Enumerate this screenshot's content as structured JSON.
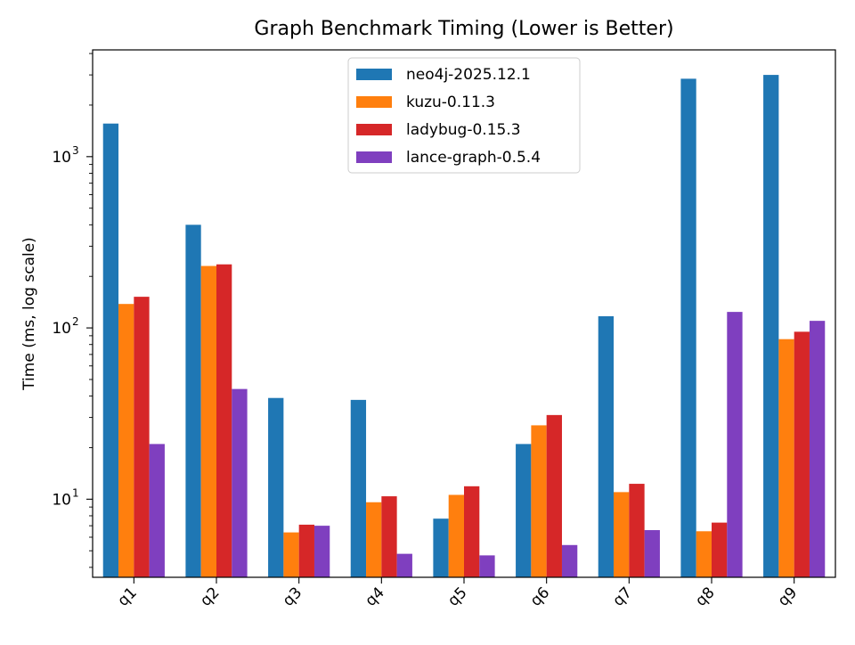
{
  "chart_data": {
    "type": "bar",
    "title": "Graph Benchmark Timing (Lower is Better)",
    "xlabel": "",
    "ylabel": "Time (ms, log scale)",
    "y_scale": "log",
    "ylim": [
      3.5,
      4200
    ],
    "y_ticks": [
      {
        "value": 10,
        "base": "10",
        "exp": "1"
      },
      {
        "value": 100,
        "base": "10",
        "exp": "2"
      },
      {
        "value": 1000,
        "base": "10",
        "exp": "3"
      }
    ],
    "categories": [
      "q1",
      "q2",
      "q3",
      "q4",
      "q5",
      "q6",
      "q7",
      "q8",
      "q9"
    ],
    "series": [
      {
        "name": "neo4j-2025.12.1",
        "color": "#1f77b4",
        "values": [
          1560,
          400,
          39,
          38,
          7.7,
          21,
          117,
          2850,
          3000
        ]
      },
      {
        "name": "kuzu-0.11.3",
        "color": "#ff7f0e",
        "values": [
          138,
          230,
          6.4,
          9.6,
          10.6,
          27,
          11,
          6.5,
          86
        ]
      },
      {
        "name": "ladybug-0.15.3",
        "color": "#d62728",
        "values": [
          152,
          235,
          7.1,
          10.4,
          11.9,
          31,
          12.3,
          7.3,
          95
        ]
      },
      {
        "name": "lance-graph-0.5.4",
        "color": "#7f3fbf",
        "values": [
          21,
          44,
          7.0,
          4.8,
          4.7,
          5.4,
          6.6,
          124,
          110
        ]
      }
    ],
    "grid": false,
    "legend_position": "top-center"
  }
}
